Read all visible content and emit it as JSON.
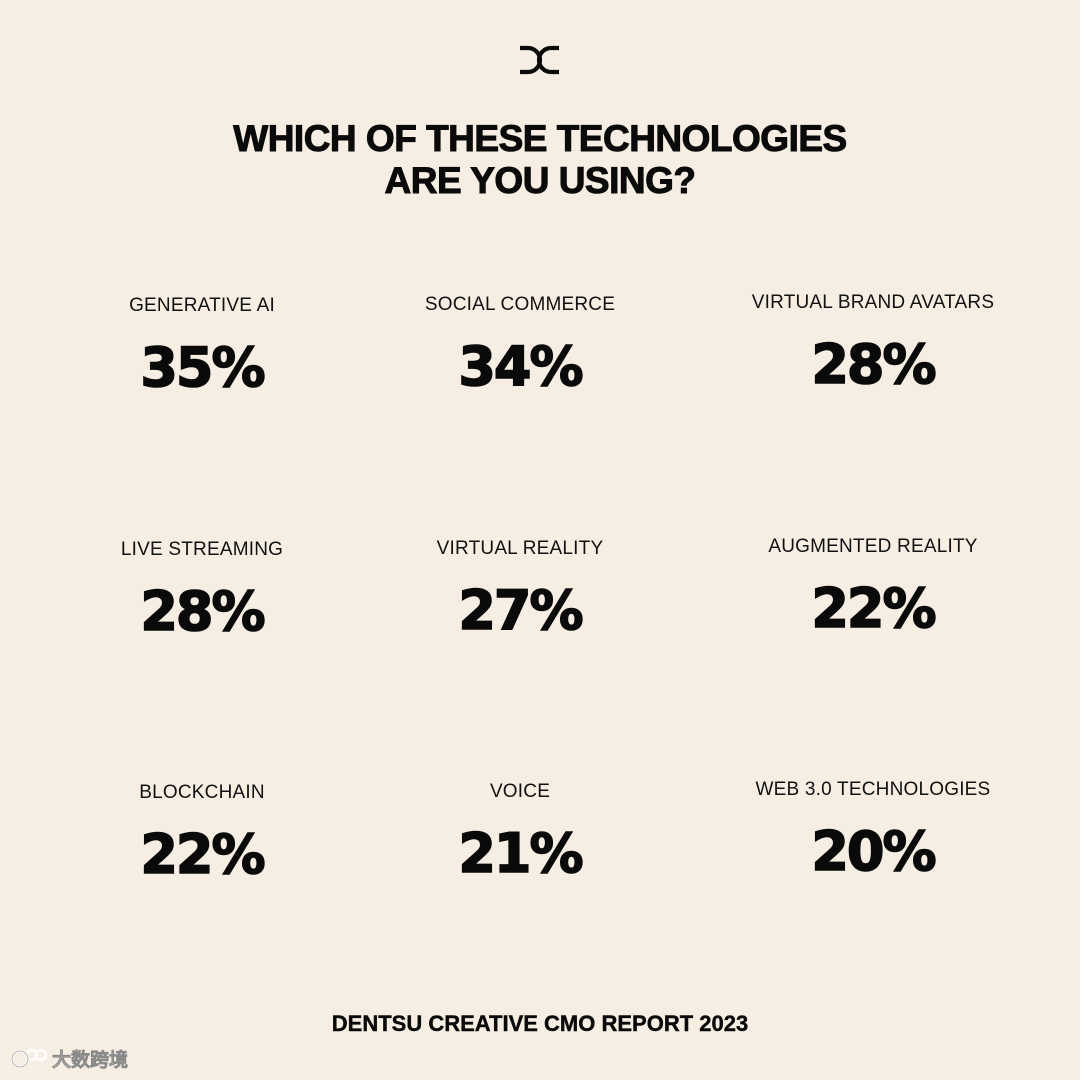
{
  "brand": {
    "logo_icon": "dentsu-creative-dc-logo-icon"
  },
  "title": {
    "line1": "WHICH OF THESE TECHNOLOGIES",
    "line2": "ARE YOU USING?"
  },
  "chart_data": {
    "type": "table",
    "title": "WHICH OF THESE TECHNOLOGIES ARE YOU USING?",
    "unit": "%",
    "categories": [
      "GENERATIVE AI",
      "SOCIAL COMMERCE",
      "VIRTUAL BRAND AVATARS",
      "LIVE STREAMING",
      "VIRTUAL REALITY",
      "AUGMENTED REALITY",
      "BLOCKCHAIN",
      "VOICE",
      "WEB 3.0 TECHNOLOGIES"
    ],
    "values": [
      35,
      34,
      28,
      28,
      27,
      22,
      22,
      21,
      20
    ],
    "display": [
      "35%",
      "34%",
      "28%",
      "28%",
      "27%",
      "22%",
      "22%",
      "21%",
      "20%"
    ]
  },
  "footer": {
    "text": "DENTSU CREATIVE CMO REPORT 2023"
  },
  "watermark": {
    "text": "大数跨境",
    "icon": "watermark-logo-icon"
  },
  "colors": {
    "background": "#f6eee3",
    "text": "#0a0a0a"
  }
}
